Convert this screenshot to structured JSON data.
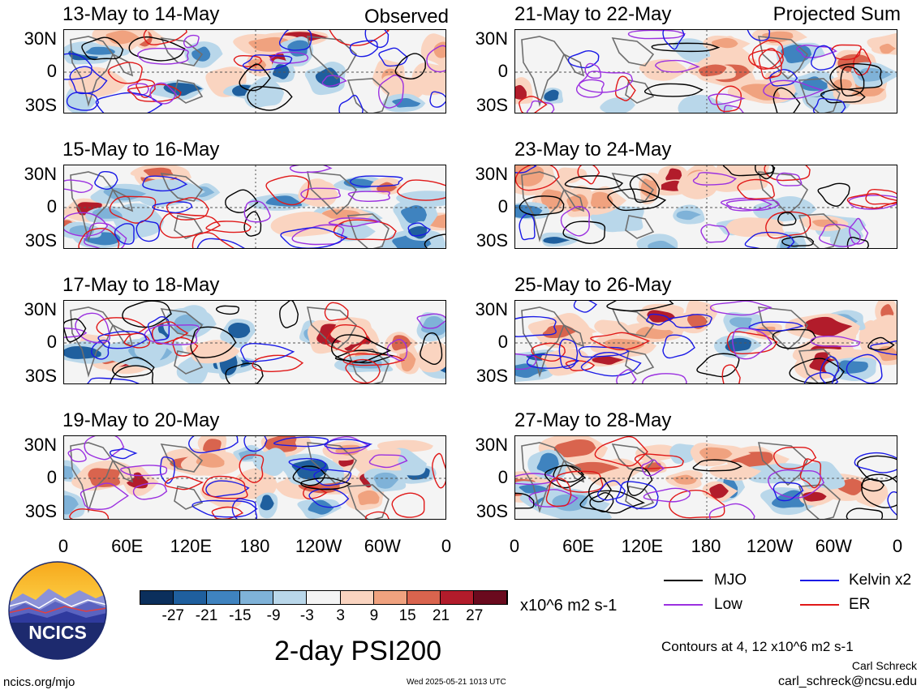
{
  "column_titles": {
    "left": "Observed",
    "right": "Projected Sum"
  },
  "y_ticks": [
    "30N",
    "0",
    "30S"
  ],
  "x_ticks": [
    "0",
    "60E",
    "120E",
    "180",
    "120W",
    "60W",
    "0"
  ],
  "panels": [
    {
      "title": "13-May to 14-May",
      "column": "left"
    },
    {
      "title": "15-May to 16-May",
      "column": "left"
    },
    {
      "title": "17-May to 18-May",
      "column": "left"
    },
    {
      "title": "19-May to 20-May",
      "column": "left"
    },
    {
      "title": "21-May to 22-May",
      "column": "right"
    },
    {
      "title": "23-May to 24-May",
      "column": "right"
    },
    {
      "title": "25-May to 26-May",
      "column": "right"
    },
    {
      "title": "27-May to 28-May",
      "column": "right"
    }
  ],
  "colorbar": {
    "labels": [
      "-27",
      "-21",
      "-15",
      "-9",
      "-3",
      "3",
      "9",
      "15",
      "21",
      "27"
    ],
    "colors": [
      "#0b2f5c",
      "#1f5f9e",
      "#3f83bf",
      "#7fb2d8",
      "#b9d7ea",
      "#f4f4f4",
      "#fad4c0",
      "#f0a27f",
      "#d9644e",
      "#b21c2b",
      "#6a0a1e"
    ],
    "units": "x10^6 m2 s-1"
  },
  "legend": [
    {
      "label": "MJO",
      "color": "#000000"
    },
    {
      "label": "Kelvin x2",
      "color": "#1a1ae6"
    },
    {
      "label": "Low",
      "color": "#9b30e0"
    },
    {
      "label": "ER",
      "color": "#e01818"
    }
  ],
  "main_title": "2-day PSI200",
  "contours_note": "Contours at 4, 12 x10^6 m2 s-1",
  "author": "Carl Schreck",
  "email": "carl_schreck@ncsu.edu",
  "url": "ncics.org/mjo",
  "timestamp": "Wed 2025-05-21 1013 UTC",
  "logo_text": "NCICS",
  "chart_data": {
    "type": "heatmap",
    "title": "2-day PSI200",
    "xlabel": "",
    "ylabel": "",
    "x_range": [
      "0",
      "0"
    ],
    "y_range": [
      "30S",
      "30N"
    ],
    "color_levels": [
      -27,
      -21,
      -15,
      -9,
      -3,
      3,
      9,
      15,
      21,
      27
    ],
    "units": "x10^6 m2 s-1",
    "contour_levels": [
      4,
      12
    ],
    "contour_series": [
      "MJO",
      "Kelvin x2",
      "Low",
      "ER"
    ],
    "panels": [
      "13-May to 14-May",
      "15-May to 16-May",
      "17-May to 18-May",
      "19-May to 20-May",
      "21-May to 22-May",
      "23-May to 24-May",
      "25-May to 26-May",
      "27-May to 28-May"
    ]
  }
}
